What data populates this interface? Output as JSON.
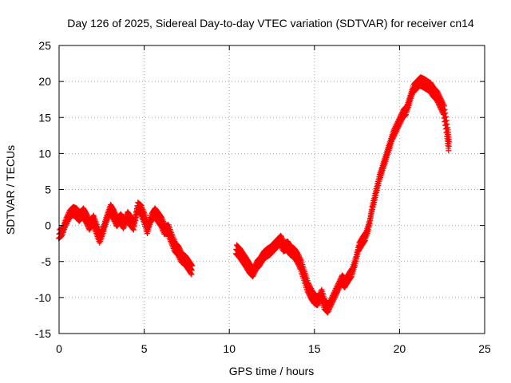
{
  "chart_data": {
    "type": "scatter",
    "title": "Day 126 of 2025, Sidereal Day-to-day VTEC variation (SDTVAR) for receiver cn14",
    "xlabel": "GPS time / hours",
    "ylabel": "SDTVAR / TECUs",
    "xlim": [
      0,
      25
    ],
    "ylim": [
      -15,
      25
    ],
    "xticks": [
      0,
      5,
      10,
      15,
      20,
      25
    ],
    "yticks": [
      -15,
      -10,
      -5,
      0,
      5,
      10,
      15,
      20,
      25
    ],
    "grid": true,
    "marker": "+",
    "series_color": "#ff0000",
    "series": [
      {
        "name": "SDTVAR",
        "points": [
          [
            0.0,
            -1.2
          ],
          [
            0.2,
            -0.8
          ],
          [
            0.4,
            0.5
          ],
          [
            0.6,
            1.5
          ],
          [
            0.8,
            2.0
          ],
          [
            1.0,
            1.8
          ],
          [
            1.2,
            1.2
          ],
          [
            1.4,
            1.8
          ],
          [
            1.6,
            1.0
          ],
          [
            1.8,
            0.0
          ],
          [
            2.0,
            0.8
          ],
          [
            2.2,
            -0.5
          ],
          [
            2.4,
            -1.8
          ],
          [
            2.6,
            -0.5
          ],
          [
            2.8,
            1.0
          ],
          [
            3.0,
            2.3
          ],
          [
            3.2,
            1.5
          ],
          [
            3.4,
            0.5
          ],
          [
            3.6,
            1.0
          ],
          [
            3.8,
            0.2
          ],
          [
            4.0,
            1.3
          ],
          [
            4.2,
            0.6
          ],
          [
            4.4,
            0.0
          ],
          [
            4.6,
            2.6
          ],
          [
            4.8,
            2.2
          ],
          [
            5.0,
            1.0
          ],
          [
            5.2,
            -0.5
          ],
          [
            5.4,
            1.0
          ],
          [
            5.6,
            1.8
          ],
          [
            5.8,
            1.2
          ],
          [
            6.0,
            0.5
          ],
          [
            6.2,
            -0.6
          ],
          [
            6.4,
            -0.5
          ],
          [
            6.6,
            -1.8
          ],
          [
            6.8,
            -3.0
          ],
          [
            7.0,
            -3.5
          ],
          [
            7.2,
            -4.5
          ],
          [
            7.4,
            -4.8
          ],
          [
            7.6,
            -5.5
          ],
          [
            7.8,
            -6.2
          ],
          [
            10.4,
            -3.3
          ],
          [
            10.6,
            -3.8
          ],
          [
            10.8,
            -4.5
          ],
          [
            11.0,
            -5.2
          ],
          [
            11.2,
            -6.0
          ],
          [
            11.4,
            -6.5
          ],
          [
            11.6,
            -5.5
          ],
          [
            11.8,
            -5.0
          ],
          [
            12.0,
            -4.2
          ],
          [
            12.2,
            -3.8
          ],
          [
            12.4,
            -3.5
          ],
          [
            12.6,
            -3.0
          ],
          [
            12.8,
            -2.5
          ],
          [
            13.0,
            -2.0
          ],
          [
            13.2,
            -3.0
          ],
          [
            13.4,
            -2.8
          ],
          [
            13.6,
            -3.5
          ],
          [
            13.8,
            -3.8
          ],
          [
            14.0,
            -4.5
          ],
          [
            14.2,
            -5.5
          ],
          [
            14.4,
            -7.0
          ],
          [
            14.6,
            -8.5
          ],
          [
            14.8,
            -9.5
          ],
          [
            15.0,
            -10.2
          ],
          [
            15.2,
            -10.5
          ],
          [
            15.4,
            -9.5
          ],
          [
            15.6,
            -11.0
          ],
          [
            15.8,
            -11.5
          ],
          [
            16.0,
            -10.5
          ],
          [
            16.2,
            -9.5
          ],
          [
            16.4,
            -8.5
          ],
          [
            16.6,
            -7.5
          ],
          [
            16.8,
            -8.0
          ],
          [
            17.0,
            -7.2
          ],
          [
            17.2,
            -6.5
          ],
          [
            17.4,
            -5.0
          ],
          [
            17.6,
            -3.0
          ],
          [
            17.8,
            -2.2
          ],
          [
            18.0,
            -1.5
          ],
          [
            18.2,
            0.0
          ],
          [
            18.4,
            2.5
          ],
          [
            18.6,
            4.5
          ],
          [
            18.8,
            6.5
          ],
          [
            19.0,
            8.0
          ],
          [
            19.2,
            9.5
          ],
          [
            19.4,
            11.0
          ],
          [
            19.6,
            12.5
          ],
          [
            19.8,
            13.5
          ],
          [
            20.0,
            14.5
          ],
          [
            20.2,
            15.5
          ],
          [
            20.4,
            16.0
          ],
          [
            20.6,
            17.5
          ],
          [
            20.8,
            19.0
          ],
          [
            21.0,
            19.5
          ],
          [
            21.2,
            20.0
          ],
          [
            21.4,
            19.8
          ],
          [
            21.6,
            19.5
          ],
          [
            21.8,
            19.2
          ],
          [
            22.0,
            18.5
          ],
          [
            22.2,
            18.0
          ],
          [
            22.4,
            17.0
          ],
          [
            22.6,
            16.0
          ],
          [
            22.8,
            13.0
          ],
          [
            22.9,
            11.0
          ]
        ]
      }
    ]
  }
}
